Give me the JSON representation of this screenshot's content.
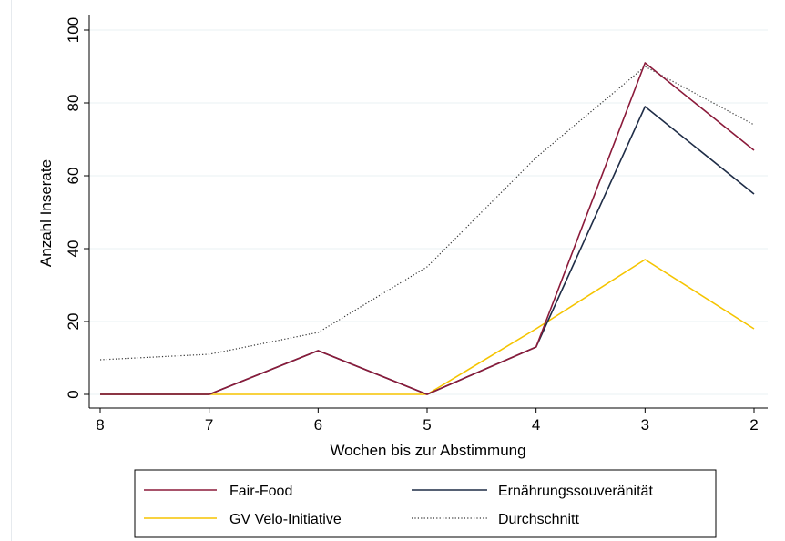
{
  "chart_data": {
    "type": "line",
    "xlabel": "Wochen bis zur Abstimmung",
    "ylabel": "Anzahl Inserate",
    "x": [
      8,
      7,
      6,
      5,
      4,
      3,
      2
    ],
    "xlim": [
      8,
      2
    ],
    "ylim": [
      0,
      100
    ],
    "yticks": [
      0,
      20,
      40,
      60,
      80,
      100
    ],
    "grid": true,
    "legend_position": "bottom",
    "series": [
      {
        "name": "Fair-Food",
        "color": "#8b1a3a",
        "style": "solid",
        "values": [
          0,
          0,
          12,
          0,
          13,
          91,
          67
        ]
      },
      {
        "name": "Ernährungssouveränität",
        "color": "#1f2d47",
        "style": "solid",
        "values": [
          0,
          0,
          12,
          0,
          13,
          79,
          55
        ]
      },
      {
        "name": "GV Velo-Initiative",
        "color": "#f5c400",
        "style": "solid",
        "values": [
          0,
          0,
          0,
          0,
          18,
          37,
          18
        ]
      },
      {
        "name": "Durchschnitt",
        "color": "#333333",
        "style": "dotted",
        "values": [
          9.5,
          11,
          17,
          35,
          65,
          90,
          74
        ]
      }
    ]
  }
}
